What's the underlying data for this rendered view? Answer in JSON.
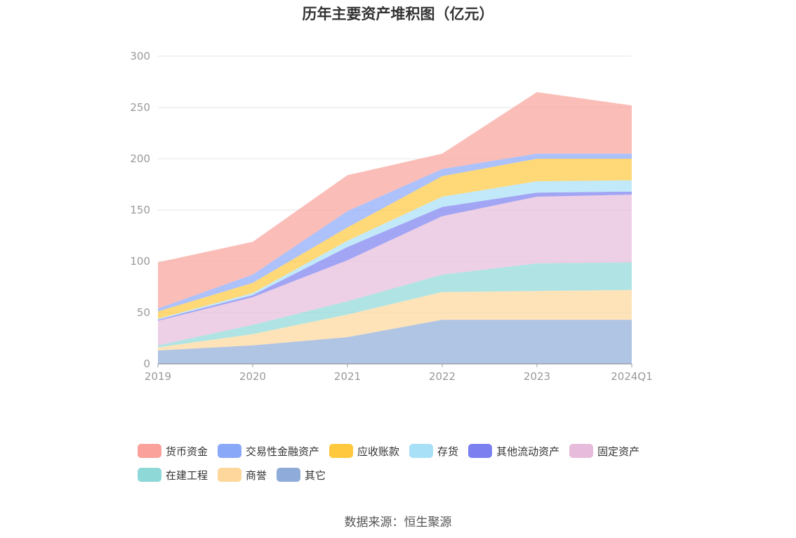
{
  "chart_data": {
    "type": "area",
    "stacked": true,
    "title": "历年主要资产堆积图（亿元）",
    "x": [
      "2019",
      "2020",
      "2021",
      "2022",
      "2023",
      "2024Q1"
    ],
    "ylim": [
      0,
      300
    ],
    "yticks": [
      0,
      50,
      100,
      150,
      200,
      250,
      300
    ],
    "grid": true,
    "legend_position": "bottom",
    "series": [
      {
        "name": "其它",
        "color": "#8fabd9",
        "values": [
          13,
          18,
          26,
          43,
          43,
          43
        ]
      },
      {
        "name": "商誉",
        "color": "#fdd79b",
        "values": [
          3,
          11,
          22,
          27,
          28,
          29
        ]
      },
      {
        "name": "在建工程",
        "color": "#8fd8d8",
        "values": [
          2,
          9,
          13,
          17,
          27,
          27
        ]
      },
      {
        "name": "固定资产",
        "color": "#e6bbdb",
        "values": [
          24,
          27,
          40,
          57,
          65,
          66
        ]
      },
      {
        "name": "其他流动资产",
        "color": "#7b7ff0",
        "values": [
          1,
          2,
          13,
          9,
          4,
          3
        ]
      },
      {
        "name": "存货",
        "color": "#a8e0f7",
        "values": [
          1,
          2,
          6,
          10,
          11,
          11
        ]
      },
      {
        "name": "应收账款",
        "color": "#ffc83d",
        "values": [
          7,
          10,
          13,
          20,
          22,
          21
        ]
      },
      {
        "name": "交易性金融资产",
        "color": "#8aa8f8",
        "values": [
          3,
          8,
          16,
          7,
          5,
          5
        ]
      },
      {
        "name": "货币资金",
        "color": "#f9a19a",
        "values": [
          45,
          32,
          35,
          15,
          60,
          47
        ]
      }
    ]
  },
  "legend": [
    "货币资金",
    "交易性金融资产",
    "应收账款",
    "存货",
    "其他流动资产",
    "固定资产",
    "在建工程",
    "商誉",
    "其它"
  ],
  "source": "数据来源：恒生聚源"
}
